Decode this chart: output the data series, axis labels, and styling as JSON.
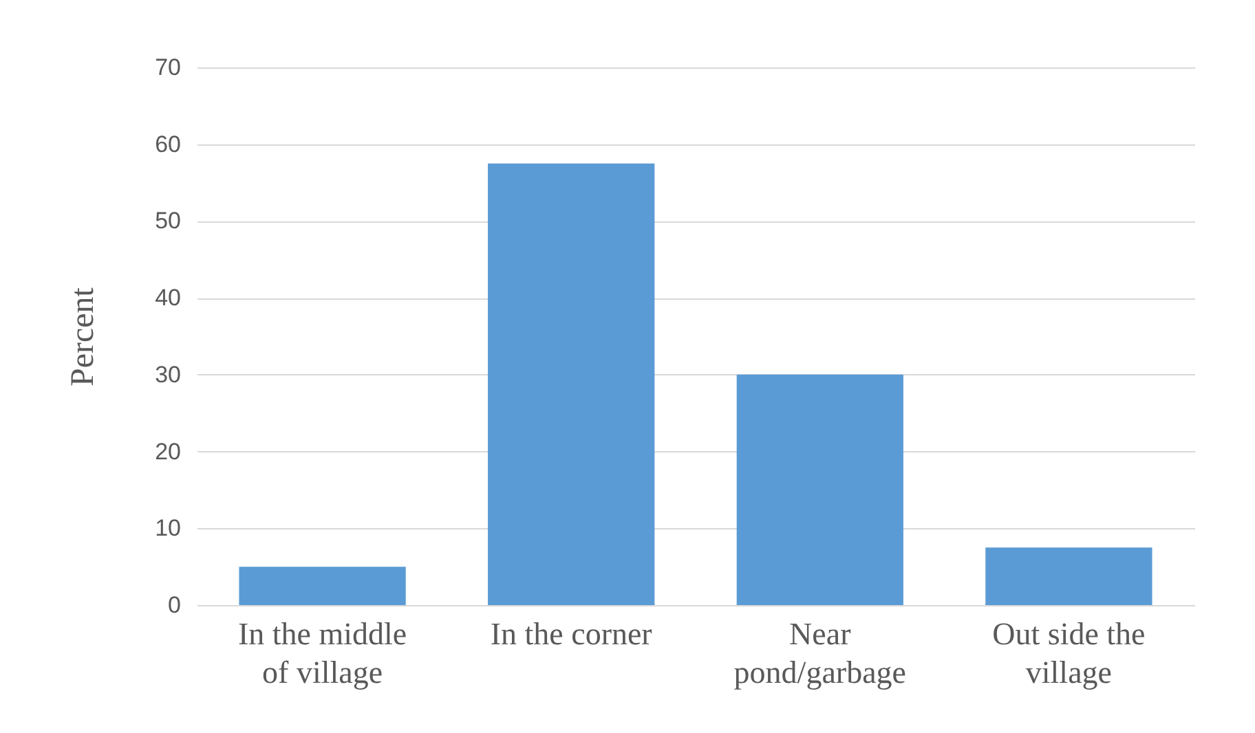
{
  "chart_data": {
    "type": "bar",
    "ylabel": "Percent",
    "categories": [
      "In the middle of village",
      "In the corner",
      "Near pond/garbage",
      "Out side the village"
    ],
    "values": [
      5,
      57.5,
      30,
      7.5
    ],
    "color": "#5b9bd5",
    "ylim": [
      0,
      70
    ],
    "yticks": [
      0,
      10,
      20,
      30,
      40,
      50,
      60,
      70
    ],
    "grid": "y"
  }
}
